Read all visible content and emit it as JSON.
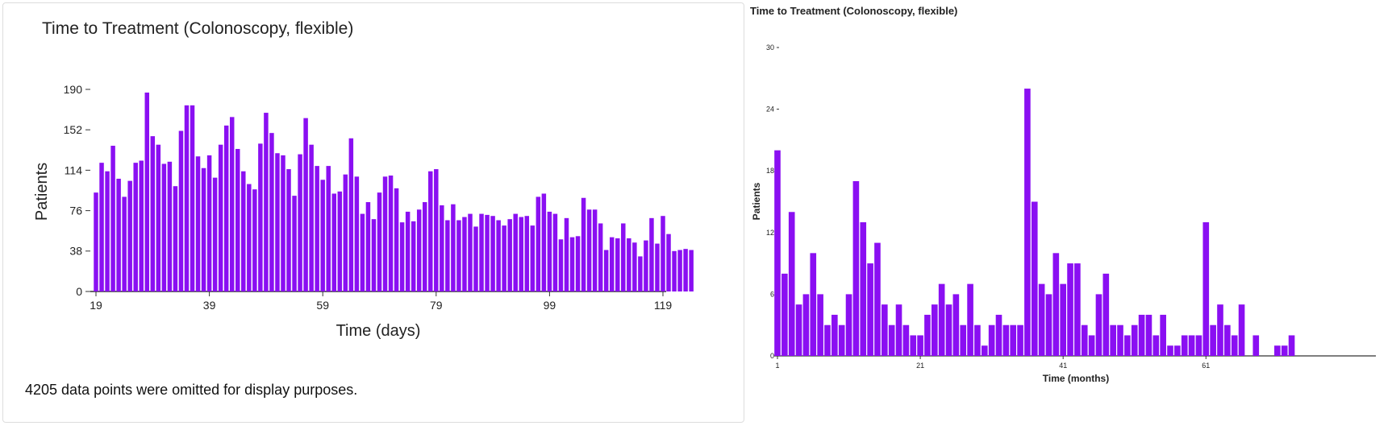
{
  "chart_data": [
    {
      "type": "bar",
      "title": "Time to Treatment (Colonoscopy, flexible)",
      "xlabel": "Time (days)",
      "ylabel": "Patients",
      "x_start": 19,
      "x_end": 119,
      "xticks": [
        "19",
        "39",
        "59",
        "79",
        "99",
        "119"
      ],
      "yticks": [
        "0",
        "38",
        "76",
        "114",
        "152",
        "190"
      ],
      "ylim": [
        0,
        190
      ],
      "bar_color": "#8a0ff2",
      "values": [
        93,
        121,
        113,
        137,
        106,
        89,
        104,
        121,
        123,
        187,
        146,
        138,
        120,
        122,
        99,
        151,
        175,
        175,
        127,
        116,
        128,
        107,
        138,
        156,
        164,
        134,
        113,
        101,
        96,
        139,
        168,
        149,
        130,
        128,
        115,
        90,
        129,
        163,
        138,
        118,
        105,
        118,
        92,
        94,
        110,
        144,
        108,
        73,
        84,
        68,
        93,
        108,
        109,
        97,
        65,
        75,
        66,
        77,
        84,
        113,
        115,
        81,
        67,
        82,
        67,
        70,
        73,
        61,
        73,
        72,
        71,
        67,
        62,
        68,
        73,
        70,
        71,
        62,
        89,
        92,
        75,
        73,
        49,
        69,
        51,
        52,
        88,
        77,
        77,
        64,
        39,
        51,
        50,
        64,
        50,
        46,
        33,
        48,
        69,
        45,
        71,
        54,
        38,
        39,
        40,
        39
      ],
      "footnote": "4205 data points were omitted for display purposes."
    },
    {
      "type": "bar",
      "title": "Time to Treatment (Colonoscopy, flexible)",
      "xlabel": "Time (months)",
      "ylabel": "Patients",
      "x_start": 1,
      "x_end": 75,
      "xticks": [
        "1",
        "21",
        "41",
        "61"
      ],
      "yticks": [
        "0",
        "6",
        "12",
        "18",
        "24",
        "30"
      ],
      "ylim": [
        0,
        30
      ],
      "bar_color": "#8a0ff2",
      "values": [
        20,
        8,
        14,
        5,
        6,
        10,
        6,
        3,
        4,
        3,
        6,
        17,
        13,
        9,
        11,
        5,
        3,
        5,
        3,
        2,
        2,
        4,
        5,
        7,
        5,
        6,
        3,
        7,
        3,
        1,
        3,
        4,
        3,
        3,
        3,
        26,
        15,
        7,
        6,
        10,
        7,
        9,
        9,
        3,
        2,
        6,
        8,
        3,
        3,
        2,
        3,
        4,
        4,
        2,
        4,
        1,
        1,
        2,
        2,
        2,
        13,
        3,
        5,
        3,
        2,
        5,
        0,
        2,
        0,
        0,
        1,
        1,
        2
      ]
    }
  ]
}
